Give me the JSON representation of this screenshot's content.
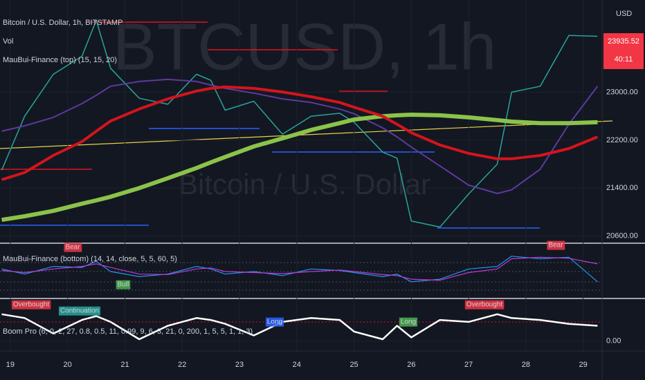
{
  "chart_data": [
    {
      "type": "line",
      "title": "Bitcoin / U.S. Dollar, 1h, BITSTAMP",
      "indicators": [
        "Vol",
        "MauBui-Finance (top) (15, 15, 20)"
      ],
      "watermark": [
        "BTCUSD, 1h",
        "Bitcoin / U.S. Dollar"
      ],
      "currency": "USD",
      "last_price": 23935.52,
      "countdown": "40:11",
      "x": [
        18.85,
        19.25,
        19.75,
        20.25,
        20.5,
        20.75,
        21.25,
        21.75,
        22.25,
        22.5,
        22.75,
        23.25,
        23.75,
        24.25,
        24.75,
        25.0,
        25.5,
        25.75,
        26.0,
        26.5,
        27.0,
        27.5,
        27.75,
        28.25,
        28.75,
        29.25
      ],
      "xlim": [
        18.82,
        29.33
      ],
      "xticks": [
        19,
        20,
        21,
        22,
        23,
        24,
        25,
        26,
        27,
        28,
        29
      ],
      "ylim": [
        20480,
        24540
      ],
      "yticks": [
        {
          "value": 23000,
          "label": "23000.00"
        },
        {
          "value": 22200,
          "label": "22200.00"
        },
        {
          "value": 21400,
          "label": "21400.00"
        },
        {
          "value": 20600,
          "label": "20600.00"
        }
      ],
      "series": [
        {
          "color": "#26a69a",
          "values": [
            21700,
            22600,
            23300,
            23600,
            24200,
            23400,
            22900,
            22800,
            23300,
            23200,
            22700,
            22850,
            22300,
            22600,
            22650,
            22500,
            22000,
            21900,
            20850,
            20750,
            21300,
            21800,
            23000,
            23100,
            23950,
            23935
          ]
        },
        {
          "color": "#5e3a9e",
          "values": [
            22350,
            22440,
            22580,
            22810,
            22950,
            23100,
            23180,
            23215,
            23180,
            23120,
            23065,
            22985,
            22890,
            22830,
            22720,
            22640,
            22405,
            22255,
            22085,
            21770,
            21450,
            21310,
            21370,
            21715,
            22465,
            23100
          ]
        },
        {
          "color": "#8bc34a",
          "values": [
            20870,
            20930,
            21020,
            21140,
            21195,
            21255,
            21400,
            21565,
            21735,
            21830,
            21920,
            22095,
            22230,
            22370,
            22485,
            22545,
            22600,
            22615,
            22625,
            22615,
            22580,
            22535,
            22510,
            22485,
            22485,
            22500
          ]
        },
        {
          "color": "#d4141c",
          "values": [
            21540,
            21660,
            21945,
            22175,
            22350,
            22520,
            22720,
            22890,
            23020,
            23065,
            23090,
            23065,
            23005,
            22925,
            22830,
            22750,
            22600,
            22465,
            22325,
            22120,
            21980,
            21890,
            21890,
            21945,
            22060,
            22255
          ]
        }
      ]
    },
    {
      "type": "line",
      "title": "MauBui-Finance (bottom) (14, 14, close, 5, 5, 60, 5)",
      "labels": [
        "Bear",
        "Bull",
        "Bear"
      ],
      "x": [
        18.85,
        19.25,
        19.75,
        20.25,
        20.5,
        20.75,
        21.25,
        21.75,
        22.25,
        22.5,
        22.75,
        23.25,
        23.75,
        24.25,
        24.75,
        25.0,
        25.5,
        25.75,
        26.0,
        26.5,
        27.0,
        27.5,
        27.75,
        28.25,
        28.75,
        29.25
      ],
      "xlim": [
        18.82,
        29.33
      ],
      "ylim": [
        0,
        100
      ],
      "series": [
        {
          "color": "#2196f3",
          "values": [
            55,
            45,
            60,
            58,
            70,
            50,
            40,
            45,
            60,
            55,
            45,
            50,
            42,
            55,
            52,
            48,
            40,
            45,
            30,
            35,
            55,
            60,
            80,
            75,
            78,
            30
          ]
        },
        {
          "color": "#c03ad6",
          "values": [
            52,
            48,
            55,
            60,
            65,
            58,
            45,
            44,
            55,
            57,
            50,
            48,
            46,
            50,
            53,
            50,
            44,
            42,
            35,
            33,
            48,
            55,
            75,
            78,
            76,
            65
          ]
        }
      ]
    },
    {
      "type": "line",
      "title": "Boom Pro (6, 0, 2, 27, 0.8, 0.5, 11, 0.99, 9, 6, 3, 21, 0, 200, 1, 5, 5, 1, 1, 3)",
      "labels": [
        "Overbought",
        "Continuation",
        "Long",
        "Long",
        "Overbought"
      ],
      "x": [
        18.85,
        19.25,
        19.75,
        20.25,
        20.5,
        20.75,
        21.25,
        21.75,
        22.25,
        22.5,
        22.75,
        23.25,
        23.75,
        24.25,
        24.75,
        25.0,
        25.5,
        25.75,
        26.0,
        26.5,
        27.0,
        27.5,
        27.75,
        28.25,
        28.75,
        29.25
      ],
      "xlim": [
        18.82,
        29.33
      ],
      "ylim": [
        -20,
        100
      ],
      "yticks": [
        {
          "value": 0,
          "label": "0.00"
        }
      ],
      "series": [
        {
          "color": "#ffffff",
          "values": [
            70,
            60,
            20,
            55,
            65,
            50,
            5,
            40,
            60,
            55,
            45,
            15,
            50,
            60,
            55,
            25,
            5,
            40,
            10,
            55,
            50,
            70,
            60,
            55,
            45,
            40
          ]
        }
      ]
    }
  ]
}
